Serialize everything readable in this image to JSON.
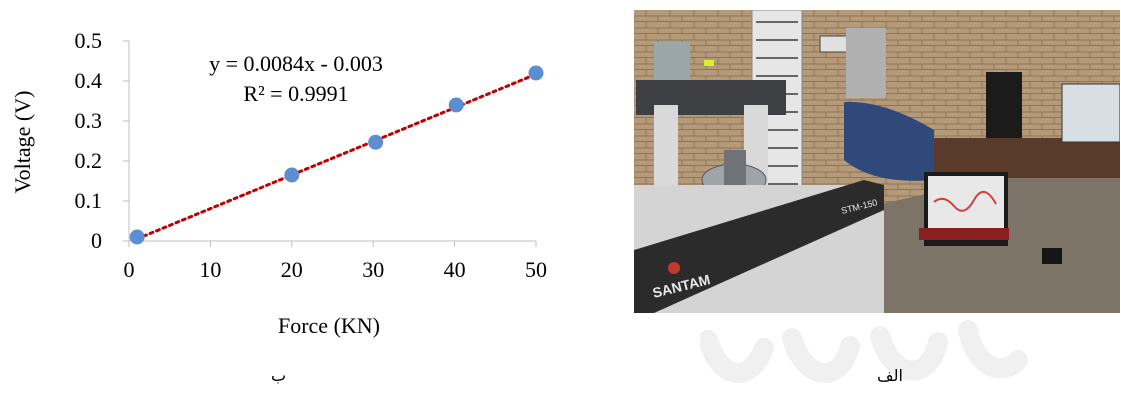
{
  "chart_data": {
    "type": "scatter",
    "xlabel": "Force (KN)",
    "ylabel": "Voltage (V)",
    "xlim": [
      0,
      50
    ],
    "ylim": [
      0,
      0.5
    ],
    "xticks": [
      0,
      10,
      20,
      30,
      40,
      50
    ],
    "yticks": [
      0,
      0.1,
      0.2,
      0.3,
      0.4,
      0.5
    ],
    "grid": false,
    "series": [
      {
        "x": [
          1,
          20,
          30.3,
          40.2,
          50
        ],
        "y": [
          0.01,
          0.165,
          0.247,
          0.34,
          0.42
        ],
        "color": "#5b8fd0"
      }
    ],
    "trendline": {
      "slope": 0.0084,
      "intercept": -0.003,
      "style": "dotted",
      "color": "#c00000"
    },
    "equation": "y = 0.0084x - 0.003",
    "r_squared": "R² = 0.9991"
  },
  "captions": {
    "left": "ب",
    "right": "الف"
  },
  "photo": {
    "labels": [
      "SANTAM",
      "STM-150"
    ]
  }
}
